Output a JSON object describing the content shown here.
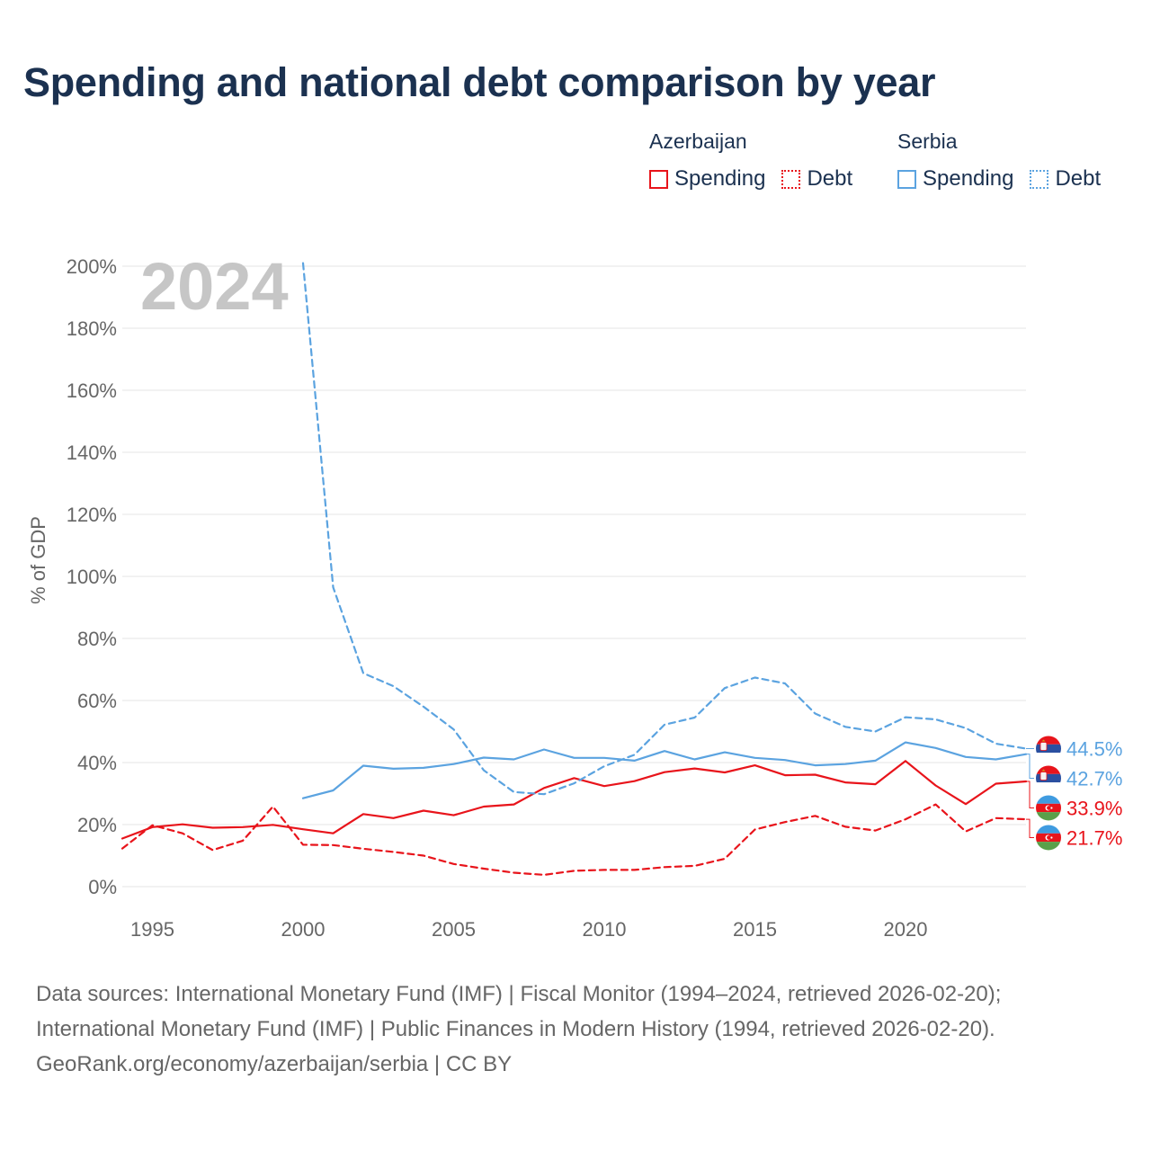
{
  "title": "Spending and national debt comparison by year",
  "legend": {
    "groups": [
      {
        "country": "Azerbaijan",
        "color": "#e8141b",
        "items": [
          {
            "label": "Spending",
            "style": "solid"
          },
          {
            "label": "Debt",
            "style": "dotted"
          }
        ]
      },
      {
        "country": "Serbia",
        "color": "#5ba3e0",
        "items": [
          {
            "label": "Spending",
            "style": "solid"
          },
          {
            "label": "Debt",
            "style": "dotted"
          }
        ]
      }
    ]
  },
  "chart_data": {
    "type": "line",
    "ylabel": "% of GDP",
    "ylim": [
      0,
      200
    ],
    "yticks": [
      0,
      20,
      40,
      60,
      80,
      100,
      120,
      140,
      160,
      180,
      200
    ],
    "ytick_labels": [
      "0%",
      "20%",
      "40%",
      "60%",
      "80%",
      "100%",
      "120%",
      "140%",
      "160%",
      "180%",
      "200%"
    ],
    "xlim": [
      1994,
      2024
    ],
    "xticks": [
      1995,
      2000,
      2005,
      2010,
      2015,
      2020
    ],
    "xtick_labels": [
      "1995",
      "2000",
      "2005",
      "2010",
      "2015",
      "2020"
    ],
    "year_label": "2024",
    "series": [
      {
        "name": "Azerbaijan Spending",
        "country": "Azerbaijan",
        "kind": "Spending",
        "color": "#e8141b",
        "dash": "solid",
        "x": [
          1994,
          1995,
          1996,
          1997,
          1998,
          1999,
          2000,
          2001,
          2002,
          2003,
          2004,
          2005,
          2006,
          2007,
          2008,
          2009,
          2010,
          2011,
          2012,
          2013,
          2014,
          2015,
          2016,
          2017,
          2018,
          2019,
          2020,
          2021,
          2022,
          2023,
          2024
        ],
        "values": [
          15.5,
          19.2,
          20.1,
          19,
          19.2,
          19.9,
          18.5,
          17.2,
          23.4,
          22.1,
          24.5,
          23,
          25.8,
          26.5,
          31.8,
          35,
          32.4,
          34,
          36.9,
          38.1,
          36.8,
          39.1,
          35.9,
          36.1,
          33.6,
          33,
          40.5,
          32.6,
          26.6,
          33.2,
          33.9
        ],
        "end_label": "33.9%",
        "flag": "Azerbaijan"
      },
      {
        "name": "Azerbaijan Debt",
        "country": "Azerbaijan",
        "kind": "Debt",
        "color": "#e8141b",
        "dash": "dashed",
        "x": [
          1994,
          1995,
          1996,
          1997,
          1998,
          1999,
          2000,
          2001,
          2002,
          2003,
          2004,
          2005,
          2006,
          2007,
          2008,
          2009,
          2010,
          2011,
          2012,
          2013,
          2014,
          2015,
          2016,
          2017,
          2018,
          2019,
          2020,
          2021,
          2022,
          2023,
          2024
        ],
        "values": [
          12.3,
          19.8,
          17.2,
          11.8,
          14.8,
          25.8,
          13.5,
          13.4,
          12.2,
          11.2,
          10,
          7.3,
          5.8,
          4.5,
          3.8,
          5.1,
          5.4,
          5.4,
          6.3,
          6.7,
          9,
          18.4,
          20.8,
          22.8,
          19.3,
          18.1,
          21.7,
          26.5,
          17.8,
          22.1,
          21.7
        ],
        "end_label": "21.7%",
        "flag": "Azerbaijan"
      },
      {
        "name": "Serbia Spending",
        "country": "Serbia",
        "kind": "Spending",
        "color": "#5ba3e0",
        "dash": "solid",
        "x": [
          2000,
          2001,
          2002,
          2003,
          2004,
          2005,
          2006,
          2007,
          2008,
          2009,
          2010,
          2011,
          2012,
          2013,
          2014,
          2015,
          2016,
          2017,
          2018,
          2019,
          2020,
          2021,
          2022,
          2023,
          2024
        ],
        "values": [
          28.5,
          31,
          39,
          38,
          38.3,
          39.5,
          41.6,
          41,
          44.2,
          41.5,
          41.5,
          40.6,
          43.7,
          41,
          43.3,
          41.5,
          40.8,
          39.1,
          39.5,
          40.6,
          46.5,
          44.7,
          41.8,
          41,
          42.7
        ],
        "end_label": "42.7%",
        "flag": "Serbia"
      },
      {
        "name": "Serbia Debt",
        "country": "Serbia",
        "kind": "Debt",
        "color": "#5ba3e0",
        "dash": "dashed",
        "x": [
          2000,
          2001,
          2002,
          2003,
          2004,
          2005,
          2006,
          2007,
          2008,
          2009,
          2010,
          2011,
          2012,
          2013,
          2014,
          2015,
          2016,
          2017,
          2018,
          2019,
          2020,
          2021,
          2022,
          2023,
          2024
        ],
        "values": [
          201,
          96.5,
          68.8,
          64.6,
          58,
          50.7,
          37.5,
          30.5,
          29.8,
          33.3,
          38.8,
          42.5,
          52.2,
          54.5,
          64,
          67.4,
          65.5,
          55.8,
          51.5,
          50,
          54.6,
          53.9,
          51.1,
          46.1,
          44.5
        ],
        "end_label": "44.5%",
        "flag": "Serbia"
      }
    ]
  },
  "sources": {
    "line1": "Data sources: International Monetary Fund (IMF) | Fiscal Monitor (1994–2024, retrieved 2026-02-20);",
    "line2": "International Monetary Fund (IMF) | Public Finances in Modern History (1994, retrieved 2026-02-20).",
    "line3": "GeoRank.org/economy/azerbaijan/serbia | CC BY"
  }
}
